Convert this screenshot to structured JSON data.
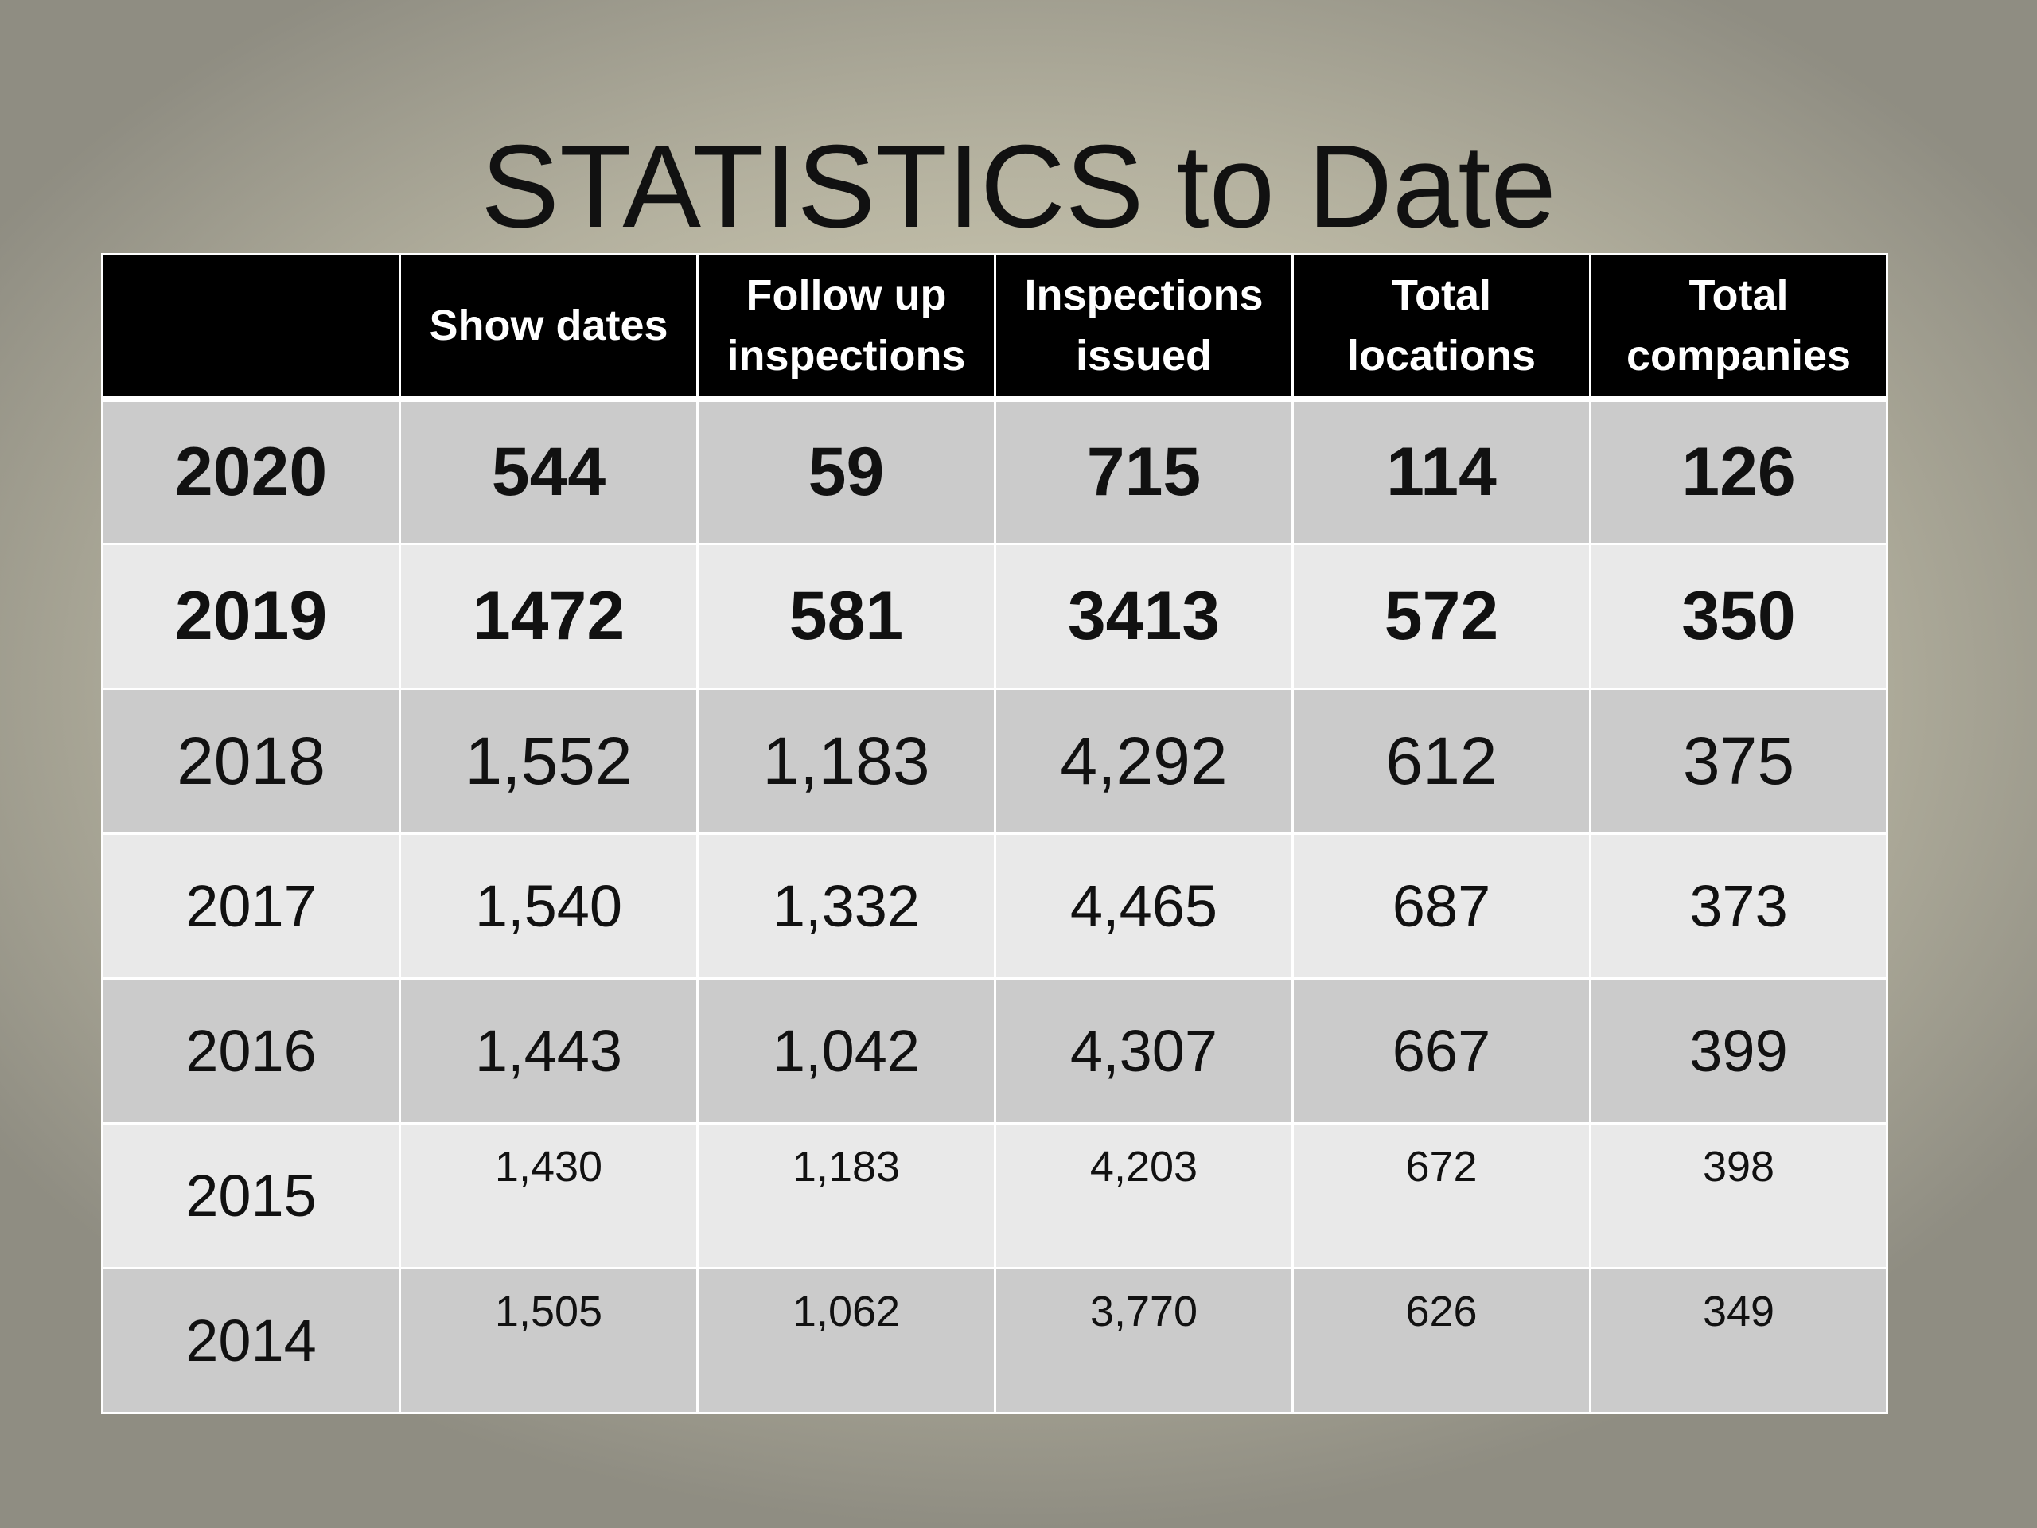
{
  "title": "STATISTICS to Date",
  "table": {
    "headers": [
      "",
      "Show dates",
      "Follow up inspections",
      "Inspections issued",
      "Total locations",
      "Total companies"
    ],
    "header_lines": [
      [
        ""
      ],
      [
        "Show dates"
      ],
      [
        "Follow up",
        "inspections"
      ],
      [
        "Inspections",
        "issued"
      ],
      [
        "Total",
        "locations"
      ],
      [
        "Total",
        "companies"
      ]
    ],
    "rows": [
      {
        "year": "2020",
        "values": [
          "544",
          "59",
          "715",
          "114",
          "126"
        ]
      },
      {
        "year": "2019",
        "values": [
          "1472",
          "581",
          "3413",
          "572",
          "350"
        ]
      },
      {
        "year": "2018",
        "values": [
          "1,552",
          "1,183",
          "4,292",
          "612",
          "375"
        ]
      },
      {
        "year": "2017",
        "values": [
          "1,540",
          "1,332",
          "4,465",
          "687",
          "373"
        ]
      },
      {
        "year": "2016",
        "values": [
          "1,443",
          "1,042",
          "4,307",
          "667",
          "399"
        ]
      },
      {
        "year": "2015",
        "values": [
          "1,430",
          "1,183",
          "4,203",
          "672",
          "398"
        ]
      },
      {
        "year": "2014",
        "values": [
          "1,505",
          "1,062",
          "3,770",
          "626",
          "349"
        ]
      }
    ]
  },
  "colors": {
    "header_bg": "#000000",
    "header_text": "#ffffff",
    "row_dark": "#cbcbcb",
    "row_light": "#e9e9e9",
    "border": "#ffffff"
  }
}
